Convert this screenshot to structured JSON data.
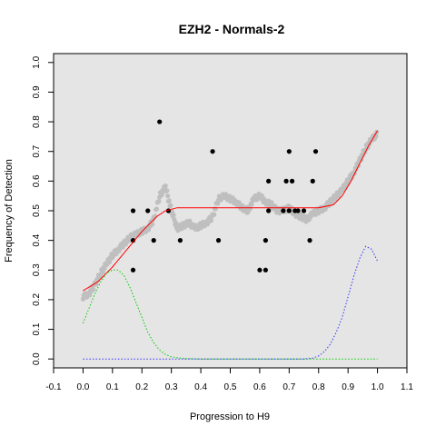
{
  "chart_data": {
    "type": "scatter",
    "title": "EZH2 - Normals-2",
    "xlabel": "Progression to H9",
    "ylabel": "Frequency of Detection",
    "xlim": [
      -0.1,
      1.1
    ],
    "ylim": [
      -0.03,
      1.03
    ],
    "x_ticks": [
      "-0.1",
      "0.0",
      "0.1",
      "0.2",
      "0.3",
      "0.4",
      "0.5",
      "0.6",
      "0.7",
      "0.8",
      "0.9",
      "1.0",
      "1.1"
    ],
    "y_ticks": [
      "0.0",
      "0.1",
      "0.2",
      "0.3",
      "0.4",
      "0.5",
      "0.6",
      "0.7",
      "0.8",
      "0.9",
      "1.0"
    ],
    "grid": false,
    "background": "#e5e5e5",
    "series": [
      {
        "kind": "smoothed-band",
        "color": "#bfbfbf",
        "points": [
          [
            0.0,
            0.21
          ],
          [
            0.02,
            0.22
          ],
          [
            0.04,
            0.25
          ],
          [
            0.06,
            0.29
          ],
          [
            0.08,
            0.32
          ],
          [
            0.1,
            0.35
          ],
          [
            0.12,
            0.37
          ],
          [
            0.14,
            0.39
          ],
          [
            0.16,
            0.41
          ],
          [
            0.18,
            0.42
          ],
          [
            0.2,
            0.43
          ],
          [
            0.22,
            0.44
          ],
          [
            0.24,
            0.47
          ],
          [
            0.26,
            0.55
          ],
          [
            0.28,
            0.58
          ],
          [
            0.3,
            0.5
          ],
          [
            0.32,
            0.44
          ],
          [
            0.34,
            0.45
          ],
          [
            0.36,
            0.46
          ],
          [
            0.38,
            0.44
          ],
          [
            0.4,
            0.45
          ],
          [
            0.42,
            0.46
          ],
          [
            0.44,
            0.48
          ],
          [
            0.46,
            0.54
          ],
          [
            0.48,
            0.55
          ],
          [
            0.5,
            0.54
          ],
          [
            0.52,
            0.53
          ],
          [
            0.54,
            0.51
          ],
          [
            0.56,
            0.5
          ],
          [
            0.58,
            0.54
          ],
          [
            0.6,
            0.55
          ],
          [
            0.62,
            0.53
          ],
          [
            0.64,
            0.52
          ],
          [
            0.66,
            0.5
          ],
          [
            0.68,
            0.5
          ],
          [
            0.7,
            0.51
          ],
          [
            0.72,
            0.49
          ],
          [
            0.74,
            0.48
          ],
          [
            0.76,
            0.47
          ],
          [
            0.78,
            0.49
          ],
          [
            0.8,
            0.5
          ],
          [
            0.82,
            0.51
          ],
          [
            0.84,
            0.53
          ],
          [
            0.86,
            0.55
          ],
          [
            0.88,
            0.57
          ],
          [
            0.9,
            0.6
          ],
          [
            0.92,
            0.63
          ],
          [
            0.94,
            0.67
          ],
          [
            0.96,
            0.71
          ],
          [
            0.98,
            0.74
          ],
          [
            1.0,
            0.76
          ]
        ]
      },
      {
        "kind": "points",
        "color": "#000000",
        "points": [
          [
            0.17,
            0.5
          ],
          [
            0.17,
            0.4
          ],
          [
            0.17,
            0.3
          ],
          [
            0.22,
            0.5
          ],
          [
            0.24,
            0.4
          ],
          [
            0.26,
            0.8
          ],
          [
            0.29,
            0.5
          ],
          [
            0.33,
            0.4
          ],
          [
            0.44,
            0.7
          ],
          [
            0.46,
            0.4
          ],
          [
            0.6,
            0.3
          ],
          [
            0.62,
            0.4
          ],
          [
            0.62,
            0.3
          ],
          [
            0.63,
            0.6
          ],
          [
            0.63,
            0.5
          ],
          [
            0.68,
            0.5
          ],
          [
            0.69,
            0.6
          ],
          [
            0.7,
            0.7
          ],
          [
            0.7,
            0.5
          ],
          [
            0.71,
            0.6
          ],
          [
            0.72,
            0.5
          ],
          [
            0.73,
            0.5
          ],
          [
            0.75,
            0.5
          ],
          [
            0.77,
            0.4
          ],
          [
            0.78,
            0.6
          ],
          [
            0.79,
            0.7
          ]
        ]
      },
      {
        "kind": "line",
        "color": "#ff0000",
        "dash": "solid",
        "points": [
          [
            0.0,
            0.23
          ],
          [
            0.05,
            0.26
          ],
          [
            0.1,
            0.31
          ],
          [
            0.15,
            0.37
          ],
          [
            0.2,
            0.43
          ],
          [
            0.25,
            0.48
          ],
          [
            0.28,
            0.5
          ],
          [
            0.32,
            0.51
          ],
          [
            0.4,
            0.51
          ],
          [
            0.5,
            0.51
          ],
          [
            0.6,
            0.51
          ],
          [
            0.7,
            0.51
          ],
          [
            0.8,
            0.51
          ],
          [
            0.85,
            0.52
          ],
          [
            0.88,
            0.55
          ],
          [
            0.91,
            0.6
          ],
          [
            0.94,
            0.66
          ],
          [
            0.97,
            0.72
          ],
          [
            1.0,
            0.77
          ]
        ]
      },
      {
        "kind": "line",
        "color": "#00cc00",
        "dash": "dotted",
        "points": [
          [
            0.0,
            0.12
          ],
          [
            0.02,
            0.17
          ],
          [
            0.04,
            0.22
          ],
          [
            0.06,
            0.26
          ],
          [
            0.08,
            0.29
          ],
          [
            0.1,
            0.3
          ],
          [
            0.12,
            0.3
          ],
          [
            0.14,
            0.28
          ],
          [
            0.16,
            0.24
          ],
          [
            0.18,
            0.19
          ],
          [
            0.2,
            0.14
          ],
          [
            0.22,
            0.09
          ],
          [
            0.24,
            0.055
          ],
          [
            0.26,
            0.03
          ],
          [
            0.28,
            0.015
          ],
          [
            0.3,
            0.007
          ],
          [
            0.34,
            0.002
          ],
          [
            0.4,
            0.0
          ],
          [
            1.0,
            0.0
          ]
        ]
      },
      {
        "kind": "line",
        "color": "#3333ff",
        "dash": "dotted",
        "points": [
          [
            0.0,
            0.0
          ],
          [
            0.75,
            0.0
          ],
          [
            0.78,
            0.003
          ],
          [
            0.8,
            0.01
          ],
          [
            0.82,
            0.025
          ],
          [
            0.84,
            0.05
          ],
          [
            0.86,
            0.09
          ],
          [
            0.88,
            0.14
          ],
          [
            0.9,
            0.21
          ],
          [
            0.92,
            0.28
          ],
          [
            0.94,
            0.34
          ],
          [
            0.96,
            0.38
          ],
          [
            0.98,
            0.37
          ],
          [
            1.0,
            0.33
          ]
        ]
      }
    ]
  }
}
